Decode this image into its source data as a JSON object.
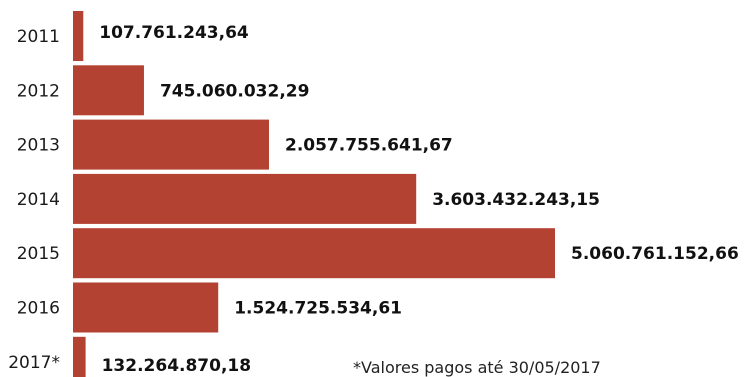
{
  "chart_data": {
    "type": "bar",
    "orientation": "horizontal",
    "categories": [
      "2011",
      "2012",
      "2013",
      "2014",
      "2015",
      "2016",
      "2017*"
    ],
    "values": [
      107761243.64,
      745060032.29,
      2057755641.67,
      3603432243.15,
      5060761152.66,
      1524725534.61,
      132264870.18
    ],
    "value_labels": [
      "107.761.243,64",
      "745.060.032,29",
      "2.057.755.641,67",
      "3.603.432.243,15",
      "5.060.761.152,66",
      "1.524.725.534,61",
      "132.264.870,18"
    ],
    "note": "*Valores pagos até 30/05/2017",
    "bar_color": "#b34232",
    "grid": false,
    "legend": "none"
  }
}
